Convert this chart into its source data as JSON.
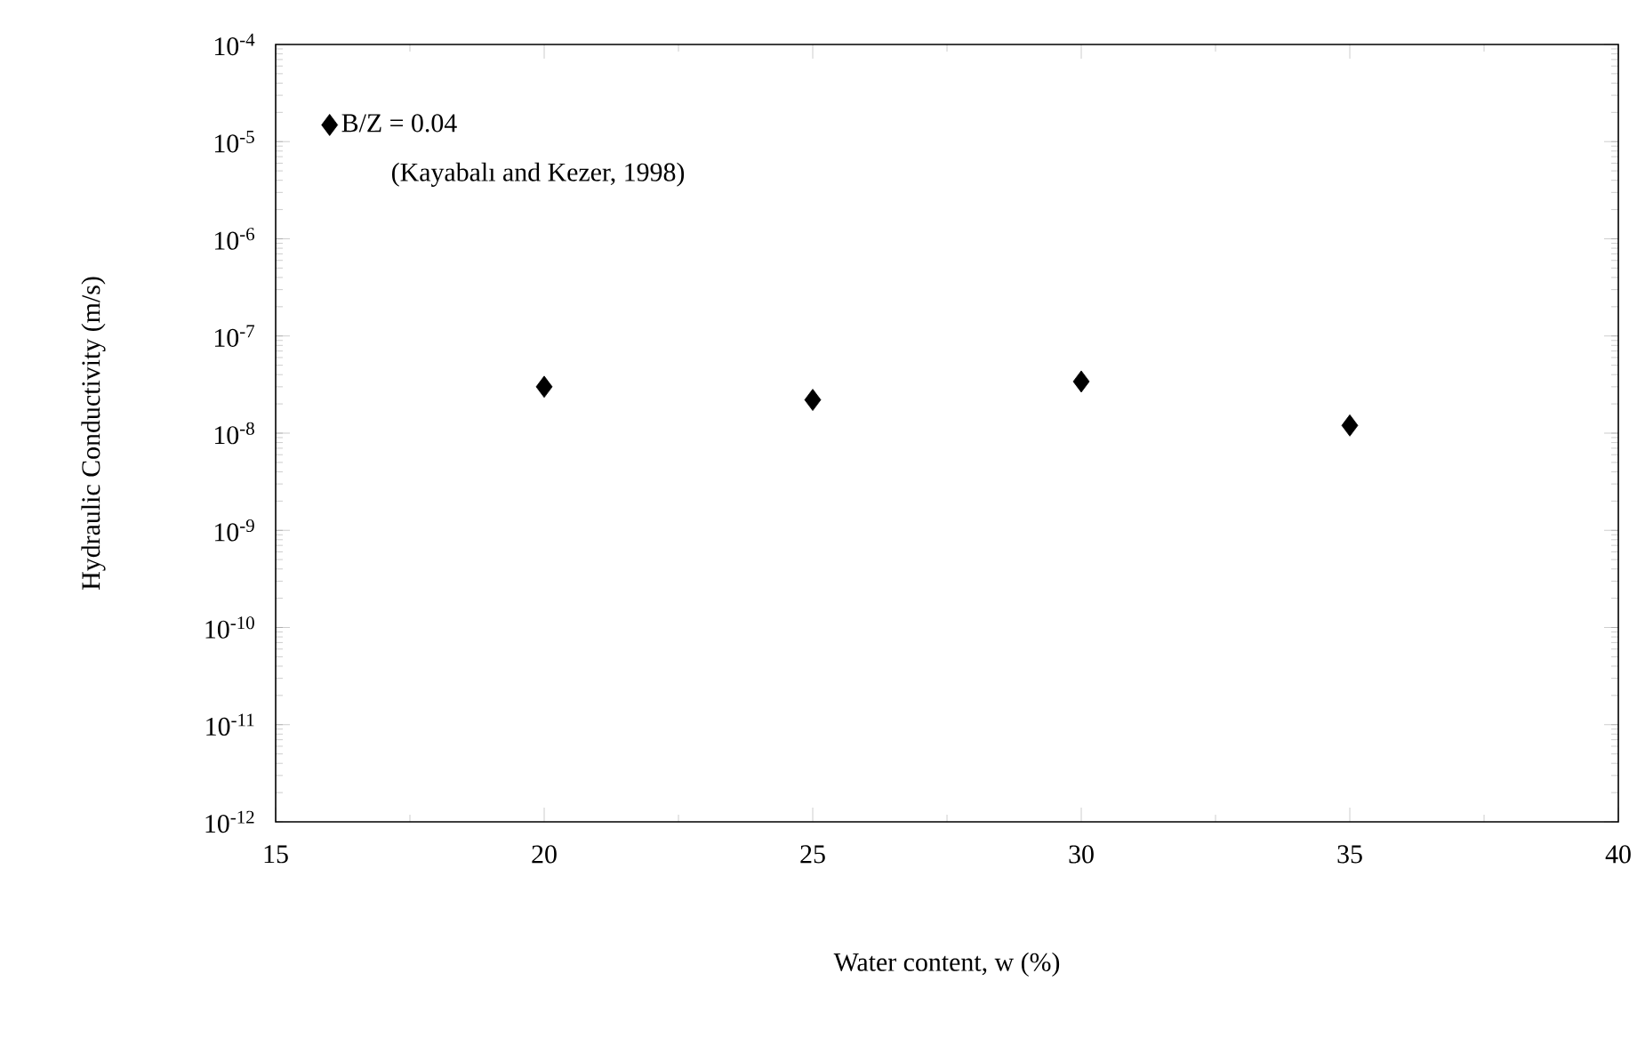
{
  "chart_data": {
    "type": "scatter",
    "xlabel": "Water content, w (%)",
    "ylabel": "Hydraulic Conductivity (m/s)",
    "x": [
      20,
      25,
      30,
      35
    ],
    "series": [
      {
        "name": "B/Z = 0.04",
        "color": "#000000",
        "values": [
          3e-08,
          2.2e-08,
          3.4e-08,
          1.2e-08
        ]
      }
    ],
    "annotations": [
      "(Kayabalı and Kezer, 1998)"
    ],
    "marker": "diamond",
    "log": "y",
    "legend": "top left",
    "xlim": [
      15,
      40
    ],
    "xticks": [
      15,
      20,
      25,
      30,
      35,
      40
    ],
    "ylim": [
      1e-12,
      0.0001
    ],
    "yticks": [
      {
        "value": 1e-12,
        "label": "10$^{-12}$"
      },
      {
        "value": 1e-11,
        "label": "10$^{-11}$"
      },
      {
        "value": 1e-10,
        "label": "10$^{-10}$"
      },
      {
        "value": 1e-09,
        "label": "10$^{-9}$"
      },
      {
        "value": 1e-08,
        "label": "10$^{-8}$"
      },
      {
        "value": 1e-07,
        "label": "10$^{-7}$"
      },
      {
        "value": 1e-06,
        "label": "10$^{-6}$"
      },
      {
        "value": 1e-05,
        "label": "10$^{-5}$"
      },
      {
        "value": 0.0001,
        "label": "10$^{-4}$"
      }
    ]
  }
}
